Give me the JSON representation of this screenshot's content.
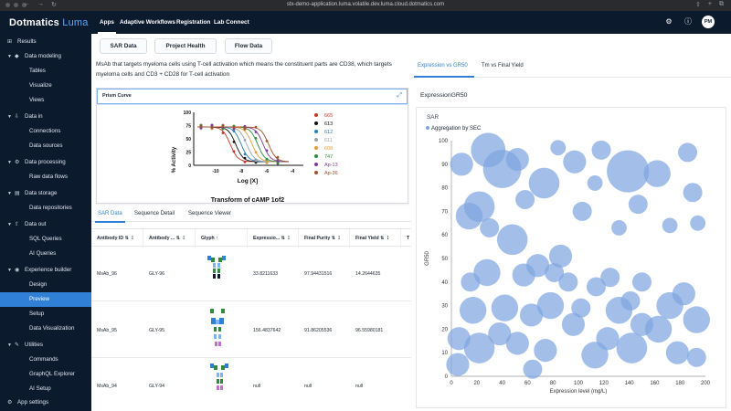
{
  "browser": {
    "url": "stx-demo-application.luma.volatile.dev.luma.cloud.dotmatics.com"
  },
  "app": {
    "brand": "Dotmatics",
    "product": "Luma"
  },
  "topnav": {
    "items": [
      "Apps",
      "Adaptive Workflows",
      "Registration",
      "Lab Connect"
    ],
    "avatar": "PM"
  },
  "sidebar": {
    "results": "Results",
    "data_modeling": "Data modeling",
    "tables": "Tables",
    "visualize": "Visualize",
    "views": "Views",
    "data_in": "Data in",
    "connections": "Connections",
    "data_sources": "Data sources",
    "data_processing": "Data processing",
    "raw_data_flows": "Raw data flows",
    "data_storage": "Data storage",
    "data_repositories": "Data repositories",
    "data_out": "Data out",
    "sql_queries": "SQL Queries",
    "ai_queries": "AI Queries",
    "experience_builder": "Experience builder",
    "design": "Design",
    "preview": "Preview",
    "setup": "Setup",
    "data_visualization": "Data Visualization",
    "utilities": "Utilities",
    "commands": "Commands",
    "graphql_explorer": "GraphQL Explorer",
    "ai_setup": "AI Setup",
    "app_settings": "App settings"
  },
  "main": {
    "buttons": [
      "SAR Data",
      "Project Health",
      "Flow Data"
    ],
    "description": "MsAb that targets myeloma cells using T-cell activation which means the constituent parts are CD38, which targets myeloma cells and CD3 + CD28 for T-cell activation",
    "prism": {
      "title": "Prism Curve",
      "ylabel": "% Activity",
      "xlabel": "Log [X]",
      "subtitle": "Transform of cAMP 1of2",
      "yticks": [
        "100",
        "75",
        "50",
        "25",
        "0"
      ],
      "xticks": [
        "-10",
        "-8",
        "-6",
        "-4"
      ],
      "legend": [
        {
          "label": "665",
          "color": "#c0392b"
        },
        {
          "label": "613",
          "color": "#111111"
        },
        {
          "label": "612",
          "color": "#2980b9"
        },
        {
          "label": "611",
          "color": "#9aa5b1"
        },
        {
          "label": "608",
          "color": "#e69b3a"
        },
        {
          "label": "747",
          "color": "#2e8b3d"
        },
        {
          "label": "Ap-13",
          "color": "#7d3c98"
        },
        {
          "label": "Ap-36",
          "color": "#a0522d"
        }
      ]
    },
    "tabs": [
      "SAR Data",
      "Sequence Detail",
      "Sequence Viewer"
    ],
    "table": {
      "headers": [
        "Antibody ID",
        "Antibody ...",
        "Glyph",
        "Expressio...",
        "Final Purity",
        "Final Yield"
      ],
      "rows": [
        {
          "id": "MsAb_96",
          "ab": "GLY-96",
          "expr": "33.8211633",
          "purity": "97.94431516",
          "yield": "14.2644635"
        },
        {
          "id": "MsAb_95",
          "ab": "GLY-95",
          "expr": "156.4837642",
          "purity": "91.86205536",
          "yield": "96.55980181"
        },
        {
          "id": "MsAb_94",
          "ab": "GLY-94",
          "expr": "null",
          "purity": "null",
          "yield": "null"
        }
      ]
    }
  },
  "right": {
    "tabs": [
      "Expression vs GR50",
      "Tm vs Final Yield"
    ],
    "chart_title": "ExpressionGR50",
    "sar_label": "SAR",
    "legend": "Aggregation by SEC"
  },
  "chart_data": {
    "type": "scatter",
    "xlabel": "Expression level (mg/L)",
    "ylabel": "GR50",
    "xlim": [
      0,
      200
    ],
    "ylim": [
      0,
      100
    ],
    "xticks": [
      0,
      20,
      40,
      60,
      80,
      100,
      120,
      140,
      160,
      180,
      200
    ],
    "yticks": [
      0,
      10,
      20,
      30,
      40,
      50,
      60,
      70,
      80,
      90,
      100
    ],
    "legend": [
      "Aggregation by SEC"
    ],
    "color": "#7fa6e0",
    "points": [
      {
        "x": 29,
        "y": 96,
        "size": 9
      },
      {
        "x": 40,
        "y": 88,
        "size": 10
      },
      {
        "x": 22,
        "y": 72,
        "size": 8
      },
      {
        "x": 14,
        "y": 68,
        "size": 7
      },
      {
        "x": 8,
        "y": 90,
        "size": 6
      },
      {
        "x": 52,
        "y": 92,
        "size": 6
      },
      {
        "x": 58,
        "y": 75,
        "size": 5
      },
      {
        "x": 73,
        "y": 82,
        "size": 8
      },
      {
        "x": 84,
        "y": 97,
        "size": 4
      },
      {
        "x": 97,
        "y": 91,
        "size": 6
      },
      {
        "x": 103,
        "y": 70,
        "size": 5
      },
      {
        "x": 118,
        "y": 96,
        "size": 5
      },
      {
        "x": 113,
        "y": 82,
        "size": 4
      },
      {
        "x": 139,
        "y": 87,
        "size": 11
      },
      {
        "x": 162,
        "y": 86,
        "size": 7
      },
      {
        "x": 186,
        "y": 95,
        "size": 5
      },
      {
        "x": 147,
        "y": 73,
        "size": 5
      },
      {
        "x": 132,
        "y": 63,
        "size": 4
      },
      {
        "x": 172,
        "y": 64,
        "size": 4
      },
      {
        "x": 194,
        "y": 65,
        "size": 4
      },
      {
        "x": 190,
        "y": 78,
        "size": 5
      },
      {
        "x": 30,
        "y": 63,
        "size": 5
      },
      {
        "x": 48,
        "y": 58,
        "size": 8
      },
      {
        "x": 28,
        "y": 44,
        "size": 7
      },
      {
        "x": 15,
        "y": 40,
        "size": 5
      },
      {
        "x": 57,
        "y": 43,
        "size": 6
      },
      {
        "x": 68,
        "y": 47,
        "size": 6
      },
      {
        "x": 81,
        "y": 44,
        "size": 5
      },
      {
        "x": 86,
        "y": 51,
        "size": 6
      },
      {
        "x": 92,
        "y": 40,
        "size": 5
      },
      {
        "x": 78,
        "y": 30,
        "size": 7
      },
      {
        "x": 63,
        "y": 26,
        "size": 6
      },
      {
        "x": 42,
        "y": 29,
        "size": 7
      },
      {
        "x": 17,
        "y": 28,
        "size": 7
      },
      {
        "x": 6,
        "y": 16,
        "size": 6
      },
      {
        "x": 22,
        "y": 12,
        "size": 8
      },
      {
        "x": 38,
        "y": 18,
        "size": 6
      },
      {
        "x": 52,
        "y": 14,
        "size": 6
      },
      {
        "x": 74,
        "y": 11,
        "size": 6
      },
      {
        "x": 96,
        "y": 22,
        "size": 6
      },
      {
        "x": 113,
        "y": 9,
        "size": 7
      },
      {
        "x": 102,
        "y": 29,
        "size": 5
      },
      {
        "x": 114,
        "y": 38,
        "size": 5
      },
      {
        "x": 123,
        "y": 16,
        "size": 6
      },
      {
        "x": 132,
        "y": 28,
        "size": 7
      },
      {
        "x": 142,
        "y": 12,
        "size": 8
      },
      {
        "x": 150,
        "y": 22,
        "size": 6
      },
      {
        "x": 163,
        "y": 20,
        "size": 7
      },
      {
        "x": 172,
        "y": 30,
        "size": 7
      },
      {
        "x": 183,
        "y": 35,
        "size": 6
      },
      {
        "x": 193,
        "y": 24,
        "size": 7
      },
      {
        "x": 178,
        "y": 10,
        "size": 6
      },
      {
        "x": 193,
        "y": 8,
        "size": 5
      },
      {
        "x": 150,
        "y": 40,
        "size": 5
      },
      {
        "x": 141,
        "y": 32,
        "size": 5
      },
      {
        "x": 125,
        "y": 42,
        "size": 5
      },
      {
        "x": 5,
        "y": 5,
        "size": 6
      },
      {
        "x": 64,
        "y": 3,
        "size": 5
      }
    ]
  }
}
